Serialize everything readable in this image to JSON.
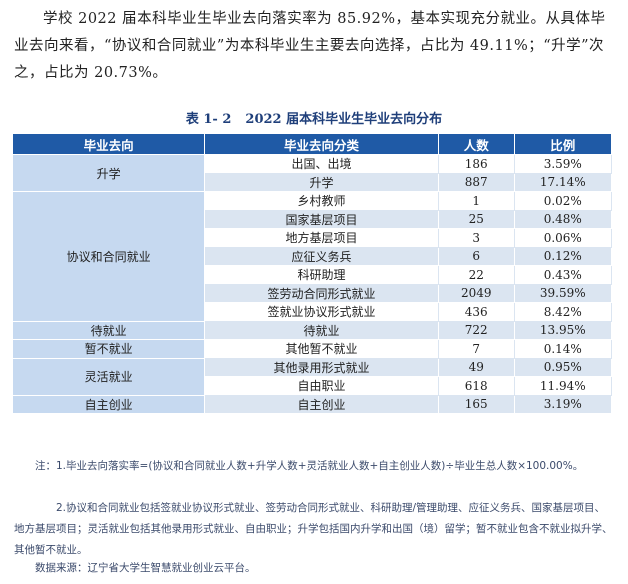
{
  "paragraph": "学校 2022 届本科毕业生毕业去向落实率为 85.92%，基本实现充分就业。从具体毕业去向来看，“协议和合同就业”为本科毕业生主要去向选择，占比为 49.11%；“升学”次之，占比为 20.73%。",
  "caption": {
    "number": "表 1- 2",
    "title": "2022 届本科毕业生毕业去向分布"
  },
  "table": {
    "headers": [
      "毕业去向",
      "毕业去向分类",
      "人数",
      "比例"
    ],
    "groups": [
      {
        "name": "升学",
        "rows": [
          [
            "出国、出境",
            "186",
            "3.59%"
          ],
          [
            "升学",
            "887",
            "17.14%"
          ]
        ]
      },
      {
        "name": "协议和合同就业",
        "rows": [
          [
            "乡村教师",
            "1",
            "0.02%"
          ],
          [
            "国家基层项目",
            "25",
            "0.48%"
          ],
          [
            "地方基层项目",
            "3",
            "0.06%"
          ],
          [
            "应征义务兵",
            "6",
            "0.12%"
          ],
          [
            "科研助理",
            "22",
            "0.43%"
          ],
          [
            "签劳动合同形式就业",
            "2049",
            "39.59%"
          ],
          [
            "签就业协议形式就业",
            "436",
            "8.42%"
          ]
        ]
      },
      {
        "name": "待就业",
        "rows": [
          [
            "待就业",
            "722",
            "13.95%"
          ]
        ]
      },
      {
        "name": "暂不就业",
        "rows": [
          [
            "其他暂不就业",
            "7",
            "0.14%"
          ]
        ]
      },
      {
        "name": "灵活就业",
        "rows": [
          [
            "其他录用形式就业",
            "49",
            "0.95%"
          ],
          [
            "自由职业",
            "618",
            "11.94%"
          ]
        ]
      },
      {
        "name": "自主创业",
        "rows": [
          [
            "自主创业",
            "165",
            "3.19%"
          ]
        ]
      }
    ]
  },
  "notes": [
    "注：1.毕业去向落实率=(协议和合同就业人数+升学人数+灵活就业人数+自主创业人数)÷毕业生总人数×100.00%。",
    "2.协议和合同就业包括签就业协议形式就业、签劳动合同形式就业、科研助理/管理助理、应征义务兵、国家基层项目、地方基层项目；灵活就业包括其他录用形式就业、自由职业；升学包括国内升学和出国（境）留学；暂不就业包含不就业拟升学、其他暂不就业。",
    "数据来源：辽宁省大学生智慧就业创业云平台。"
  ]
}
